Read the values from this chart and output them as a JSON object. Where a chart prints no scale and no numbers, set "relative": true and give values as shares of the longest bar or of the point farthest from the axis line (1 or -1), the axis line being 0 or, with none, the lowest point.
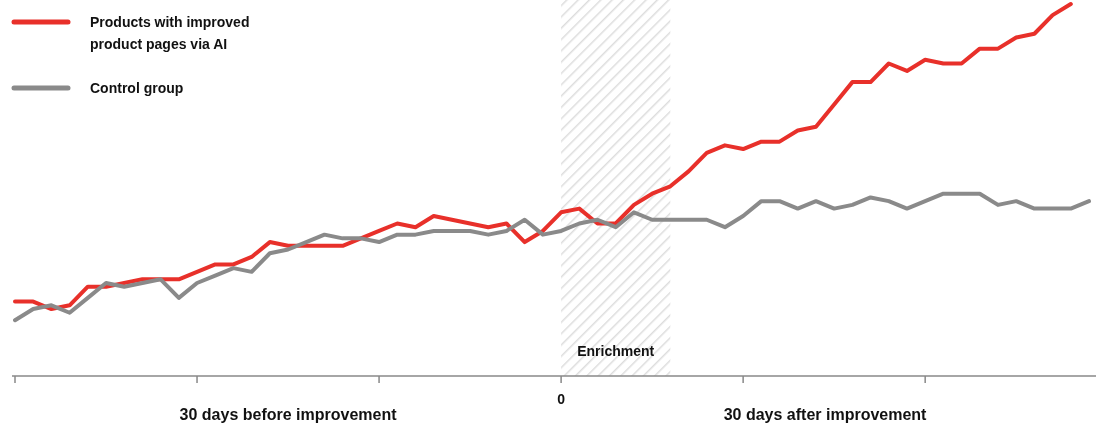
{
  "chart_data": {
    "type": "line",
    "relative": true,
    "legend": "top left",
    "line_style": "solid",
    "categories": [
      null,
      null,
      null,
      null,
      null,
      null,
      null,
      null,
      null,
      null,
      null,
      null,
      null,
      null,
      null,
      null,
      null,
      null,
      null,
      null,
      null,
      null,
      null,
      null,
      null,
      null,
      null,
      null,
      null,
      null,
      null,
      null,
      null,
      null,
      null,
      null,
      null,
      null,
      null,
      null,
      null,
      null,
      null,
      null,
      null,
      null,
      null,
      null,
      null,
      null,
      null,
      null,
      null,
      null,
      null,
      null,
      null,
      null,
      null,
      null
    ],
    "annotations": [
      "30 days before improvement",
      "30 days after improvement",
      "0",
      "Enrichment"
    ],
    "series": [
      {
        "name": "Products with improved product pages via AI",
        "color": "#e8302a",
        "values": [
          0.2,
          0.2,
          0.18,
          0.19,
          0.24,
          0.24,
          0.25,
          0.26,
          0.26,
          0.26,
          0.28,
          0.3,
          0.3,
          0.32,
          0.36,
          0.35,
          0.35,
          0.35,
          0.35,
          0.37,
          0.39,
          0.41,
          0.4,
          0.43,
          0.42,
          0.41,
          0.4,
          0.41,
          0.36,
          0.39,
          0.44,
          0.45,
          0.41,
          0.41,
          0.46,
          0.49,
          0.51,
          0.55,
          0.6,
          0.62,
          0.61,
          0.63,
          0.63,
          0.66,
          0.67,
          0.73,
          0.79,
          0.79,
          0.84,
          0.82,
          0.85,
          0.84,
          0.84,
          0.88,
          0.88,
          0.91,
          0.92,
          0.97,
          1.0,
          null
        ]
      },
      {
        "name": "Control group",
        "color": "#8a8a8a",
        "values": [
          0.15,
          0.18,
          0.19,
          0.17,
          0.21,
          0.25,
          0.24,
          0.25,
          0.26,
          0.21,
          0.25,
          0.27,
          0.29,
          0.28,
          0.33,
          0.34,
          0.36,
          0.38,
          0.37,
          0.37,
          0.36,
          0.38,
          0.38,
          0.39,
          0.39,
          0.39,
          0.38,
          0.39,
          0.42,
          0.38,
          0.39,
          0.41,
          0.42,
          0.4,
          0.44,
          0.42,
          0.42,
          0.42,
          0.42,
          0.4,
          0.43,
          0.47,
          0.47,
          0.45,
          0.47,
          0.45,
          0.46,
          0.48,
          0.47,
          0.45,
          0.47,
          0.49,
          0.49,
          0.49,
          0.46,
          0.47,
          0.45,
          0.45,
          0.45,
          0.47
        ]
      }
    ]
  }
}
